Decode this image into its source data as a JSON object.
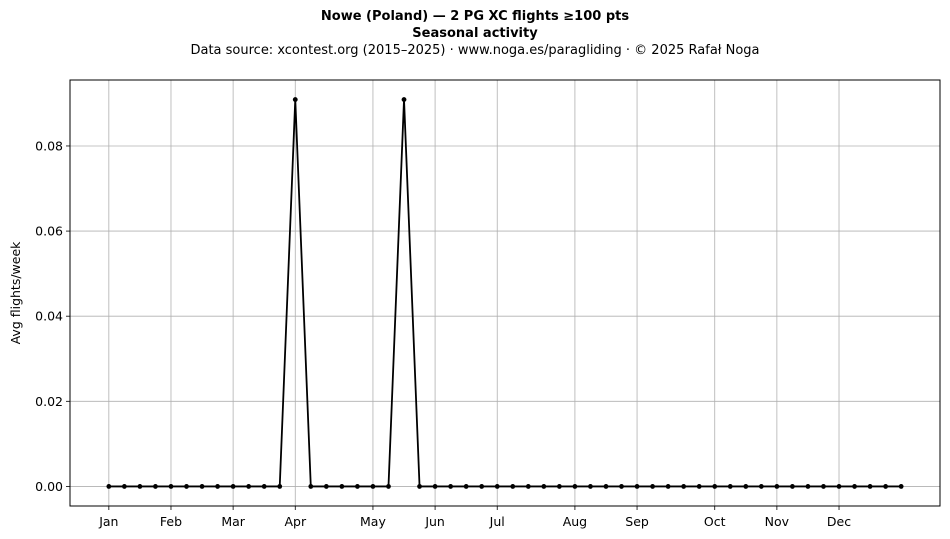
{
  "header": {
    "title": "Nowe (Poland)  —  2 PG XC flights ≥100 pts",
    "subtitle": "Seasonal activity",
    "source": "Data source: xcontest.org (2015–2025)  ·  www.noga.es/paragliding  ·  © 2025 Rafał Noga"
  },
  "chart_data": {
    "type": "line",
    "title": "Nowe (Poland)  —  2 PG XC flights ≥100 pts",
    "subtitle": "Seasonal activity",
    "xlabel": "",
    "ylabel": "Avg flights/week",
    "x_unit": "week of year",
    "xlim": [
      -2.5,
      53.5
    ],
    "ylim": [
      -0.0046,
      0.0955
    ],
    "yticks": [
      0.0,
      0.02,
      0.04,
      0.06,
      0.08
    ],
    "ytick_labels": [
      "0.00",
      "0.02",
      "0.04",
      "0.06",
      "0.08"
    ],
    "xticks": [
      0,
      4,
      8,
      12,
      17,
      21,
      25,
      30,
      34,
      39,
      43,
      47
    ],
    "xtick_labels": [
      "Jan",
      "Feb",
      "Mar",
      "Apr",
      "May",
      "Jun",
      "Jul",
      "Aug",
      "Sep",
      "Oct",
      "Nov",
      "Dec"
    ],
    "grid": true,
    "legend": "none",
    "series": [
      {
        "color": "#000000",
        "marker": "dot",
        "x": [
          0,
          1,
          2,
          3,
          4,
          5,
          6,
          7,
          8,
          9,
          10,
          11,
          12,
          13,
          14,
          15,
          16,
          17,
          18,
          19,
          20,
          21,
          22,
          23,
          24,
          25,
          26,
          27,
          28,
          29,
          30,
          31,
          32,
          33,
          34,
          35,
          36,
          37,
          38,
          39,
          40,
          41,
          42,
          43,
          44,
          45,
          46,
          47,
          48,
          49,
          50,
          51
        ],
        "values": [
          0,
          0,
          0,
          0,
          0,
          0,
          0,
          0,
          0,
          0,
          0,
          0,
          0.0909,
          0,
          0,
          0,
          0,
          0,
          0,
          0.0909,
          0,
          0,
          0,
          0,
          0,
          0,
          0,
          0,
          0,
          0,
          0,
          0,
          0,
          0,
          0,
          0,
          0,
          0,
          0,
          0,
          0,
          0,
          0,
          0,
          0,
          0,
          0,
          0,
          0,
          0,
          0,
          0
        ]
      }
    ]
  }
}
